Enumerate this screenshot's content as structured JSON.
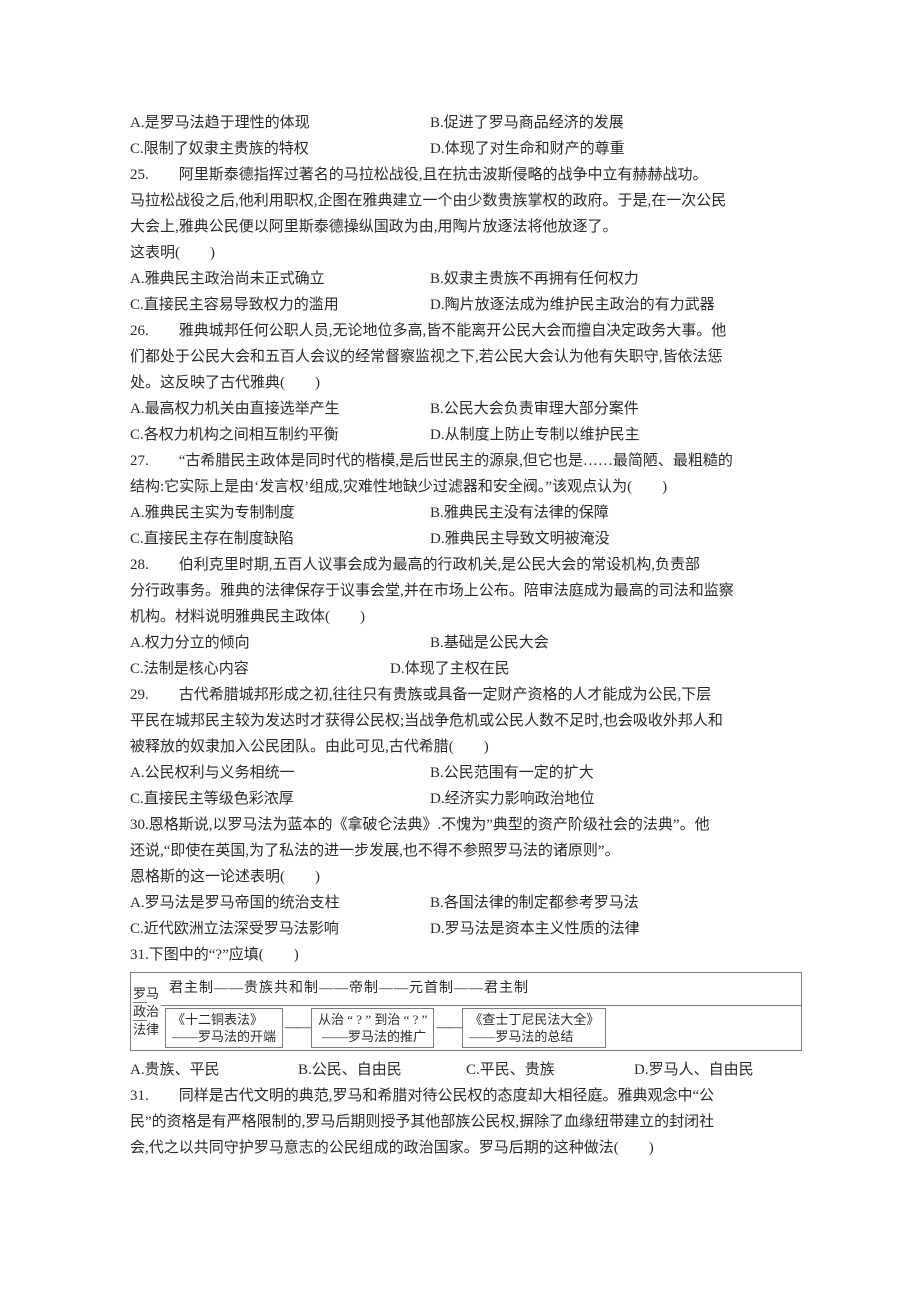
{
  "options_24": {
    "A": "A.是罗马法趋于理性的体现",
    "B": "B.促进了罗马商品经济的发展",
    "C": "C.限制了奴隶主贵族的特权",
    "D": "D.体现了对生命和财产的尊重"
  },
  "q25": {
    "stem1": "25.　　阿里斯泰德指挥过著名的马拉松战役,且在抗击波斯侵略的战争中立有赫赫战功。",
    "stem2": "马拉松战役之后,他利用职权,企图在雅典建立一个由少数贵族掌权的政府。于是,在一次公民",
    "stem3": "大会上,雅典公民便以阿里斯泰德操纵国政为由,用陶片放逐法将他放逐了。",
    "stem4": "这表明(　　)",
    "A": "A.雅典民主政治尚未正式确立",
    "B": "B.奴隶主贵族不再拥有任何权力",
    "C": "C.直接民主容易导致权力的滥用",
    "D": "D.陶片放逐法成为维护民主政治的有力武器"
  },
  "q26": {
    "stem1": "26.　　雅典城邦任何公职人员,无论地位多高,皆不能离开公民大会而擅自决定政务大事。他",
    "stem2": "们都处于公民大会和五百人会议的经常督察监视之下,若公民大会认为他有失职守,皆依法惩",
    "stem3": "处。这反映了古代雅典(　　)",
    "A": "A.最高权力机关由直接选举产生",
    "B": "B.公民大会负责审理大部分案件",
    "C": "C.各权力机构之间相互制约平衡",
    "D": "D.从制度上防止专制以维护民主"
  },
  "q27": {
    "stem1": "27.　　“古希腊民主政体是同时代的楷模,是后世民主的源泉,但它也是……最简陋、最粗糙的",
    "stem2": "结构:它实际上是由‘发言权’组成,灾难性地缺少过滤器和安全阀。”该观点认为(　　)",
    "A": "A.雅典民主实为专制制度",
    "B": "B.雅典民主没有法律的保障",
    "C": "C.直接民主存在制度缺陷",
    "D": "D.雅典民主导致文明被淹没"
  },
  "q28": {
    "stem1": "28.　　伯利克里时期,五百人议事会成为最高的行政机关,是公民大会的常设机构,负责部",
    "stem2": "分行政事务。雅典的法律保存于议事会堂,并在市场上公布。陪审法庭成为最高的司法和监察",
    "stem3": "机构。材料说明雅典民主政体(　　)",
    "A": "A.权力分立的倾向",
    "B": "B.基础是公民大会",
    "C": "C.法制是核心内容",
    "D": "D.体现了主权在民"
  },
  "q29": {
    "stem1": "29.　　古代希腊城邦形成之初,往往只有贵族或具备一定财产资格的人才能成为公民,下层",
    "stem2": "平民在城邦民主较为发达时才获得公民权;当战争危机或公民人数不足时,也会吸收外邦人和",
    "stem3": "被释放的奴隶加入公民团队。由此可见,古代希腊(　　)",
    "A": "A.公民权利与义务相统一",
    "B": "B.公民范围有一定的扩大",
    "C": "C.直接民主等级色彩浓厚",
    "D": "D.经济实力影响政治地位"
  },
  "q30": {
    "stem1": "30.恩格斯说,以罗马法为蓝本的《拿破仑法典》.不愧为”典型的资产阶级社会的法典”。他",
    "stem2": "还说,“即使在英国,为了私法的进一步发展,也不得不参照罗马法的诸原则”。",
    "stem3": "恩格斯的这一论述表明(　　)",
    "A": "A.罗马法是罗马帝国的统治支柱",
    "B": "B.各国法律的制定都参考罗马法",
    "C": "C.近代欧洲立法深受罗马法影响",
    "D": "D.罗马法是资本主义性质的法律"
  },
  "q31a": {
    "stem": "31.下图中的“?”应填(　　)",
    "A": "A.贵族、平民",
    "B": "B.公民、自由民",
    "C": "C.平民、贵族",
    "D": "D.罗马人、自由民"
  },
  "diagram": {
    "left_col": [
      "罗马",
      "政治",
      "法律"
    ],
    "top_line": "君主制——贵族共和制——帝制——元首制——君主制",
    "g1_top": "《十二铜表法》",
    "g1_bot": "——罗马法的开端",
    "g2_top": "从治 “ ? ” 到治 “ ? ”",
    "g2_bot": "——罗马法的推广",
    "g3_top": "《查士丁尼民法大全》",
    "g3_bot": "——罗马法的总结"
  },
  "q31b": {
    "stem1": "31.　　同样是古代文明的典范,罗马和希腊对待公民权的态度却大相径庭。雅典观念中“公",
    "stem2": "民”的资格是有严格限制的,罗马后期则授予其他部族公民权,摒除了血缘纽带建立的封闭社",
    "stem3": "会,代之以共同守护罗马意志的公民组成的政治国家。罗马后期的这种做法(　　)"
  }
}
